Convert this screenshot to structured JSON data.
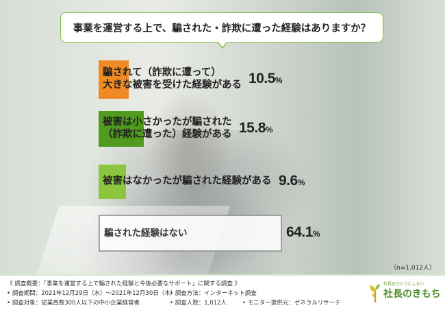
{
  "question": "事業を運営する上で、騙された・詐欺に遭った経験はありますか？",
  "chart_data": {
    "type": "bar",
    "orientation": "horizontal",
    "categories": [
      [
        "騙されて（詐欺に遭って）",
        "大きな被害を受けた経験がある"
      ],
      [
        "被害は小さかったが騙された",
        "（詐欺に遭った）経験がある"
      ],
      [
        "被害はなかったが騙された経験がある"
      ],
      [
        "騙された経験はない"
      ]
    ],
    "values": [
      10.5,
      15.8,
      9.6,
      64.1
    ],
    "value_labels": [
      "10.5",
      "15.8",
      "9.6",
      "64.1"
    ],
    "unit": "%",
    "colors": [
      "#f08a24",
      "#4f9a1f",
      "#8cc63f",
      "#ffffff"
    ]
  },
  "sample_note": "（n=1,012人）",
  "footer": {
    "line1": "《 調査概要：「事業を運営する上で騙された経験と今後必要なサポート」に関する調査 》",
    "period": "• 調査期間：2021年12月29日（水）～2021年12月30日（木）",
    "method": "• 調査方法：インターネット調査",
    "target": "• 調査対象：従業員数300人以下の中小企業経営者",
    "count": "• 調査人数：1,012人",
    "provider": "• モニター提供元：ゼネラルリサーチ"
  },
  "logo": {
    "tagline": "社長をひとりにしない",
    "name": "社長のきもち",
    "icon": "sprout-icon"
  }
}
